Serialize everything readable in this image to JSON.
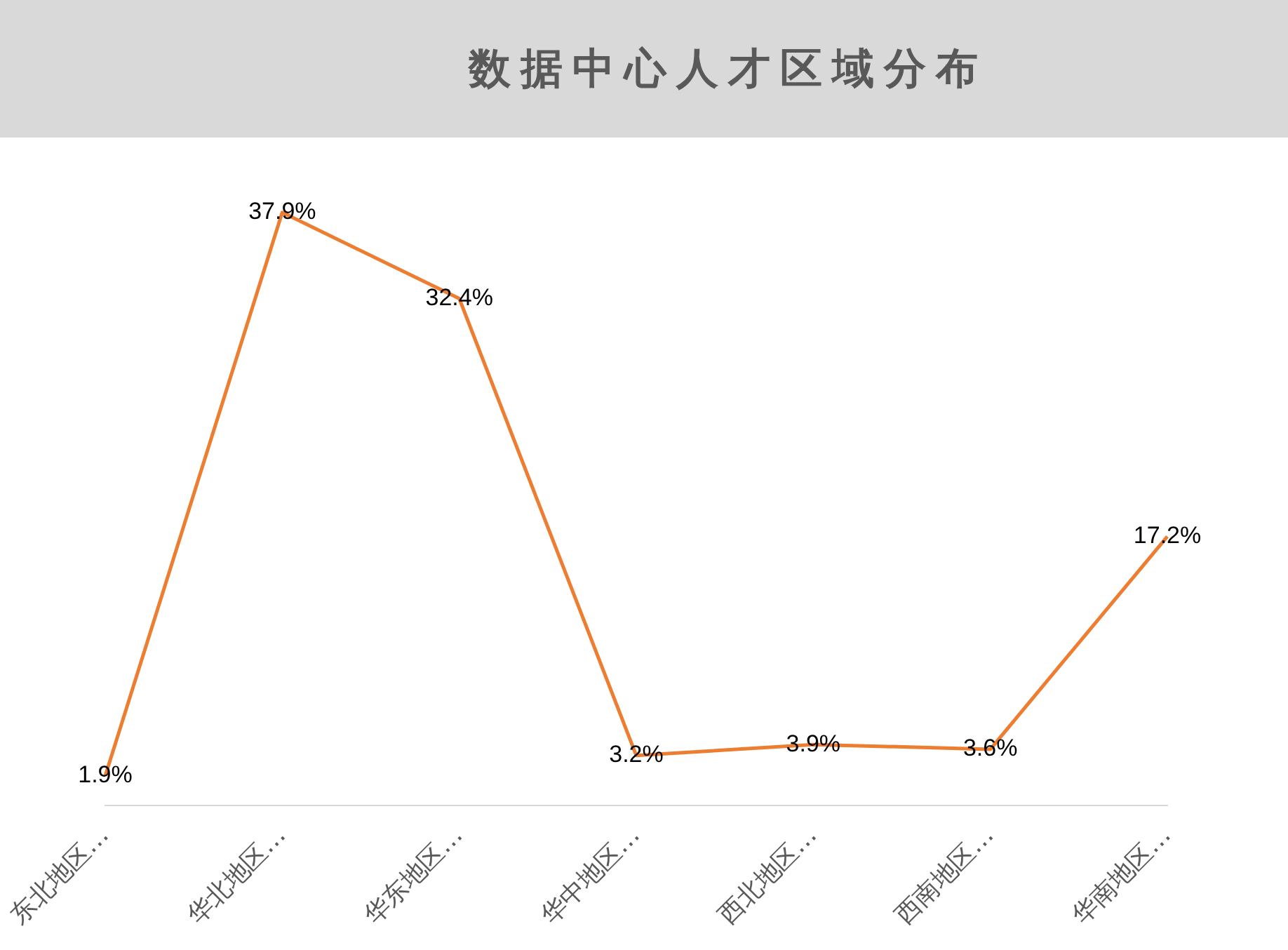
{
  "chart_data": {
    "type": "line",
    "title": "数据中心人才区域分布",
    "categories": [
      "东北地区…",
      "华北地区…",
      "华东地区…",
      "华中地区…",
      "西北地区…",
      "西南地区…",
      "华南地区…"
    ],
    "series": [
      {
        "color": "#ed7d31",
        "values": [
          1.9,
          37.9,
          32.4,
          3.2,
          3.9,
          3.6,
          17.2
        ],
        "value_labels": [
          "1.9%",
          "37.9%",
          "32.4%",
          "3.2%",
          "3.9%",
          "3.6%",
          "17.2%"
        ]
      }
    ],
    "marker": "none",
    "line_style": "solid",
    "tick_labels": "x"
  }
}
